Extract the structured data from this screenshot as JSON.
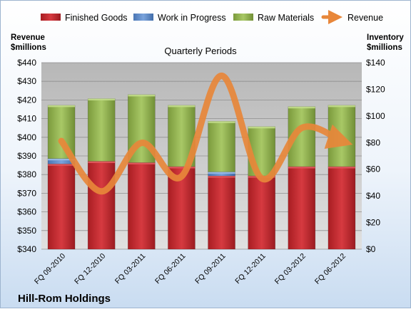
{
  "chart_data": {
    "type": "bar",
    "subtitle": "Quarterly Periods",
    "company": "Hill-Rom Holdings",
    "categories": [
      "FQ 09-2010",
      "FQ 12-2010",
      "FQ 03-2011",
      "FQ 06-2011",
      "FQ 09-2011",
      "FQ 12-2011",
      "FQ 03-2012",
      "FQ 06-2012"
    ],
    "left_axis": {
      "title_line1": "Revenue",
      "title_line2": "$millions",
      "range": [
        340,
        440
      ],
      "ticks": [
        "$440",
        "$430",
        "$420",
        "$410",
        "$400",
        "$390",
        "$380",
        "$370",
        "$360",
        "$350",
        "$340"
      ]
    },
    "right_axis": {
      "title_line1": "Inventory",
      "title_line2": "$millions",
      "range": [
        0,
        140
      ],
      "ticks": [
        "$140",
        "$120",
        "$100",
        "$80",
        "$60",
        "$40",
        "$20",
        "$0"
      ]
    },
    "series": [
      {
        "name": "Finished Goods",
        "axis": "right",
        "color": "#c0282e",
        "values": [
          64,
          66,
          65,
          62,
          55,
          55,
          62,
          62
        ]
      },
      {
        "name": "Work in Progress",
        "axis": "right",
        "color": "#5b87c6",
        "values": [
          4,
          0,
          0,
          0,
          3,
          0,
          0,
          0
        ]
      },
      {
        "name": "Raw Materials",
        "axis": "right",
        "color": "#8fb04a",
        "values": [
          40,
          47,
          51,
          46,
          38,
          37,
          45,
          46
        ]
      },
      {
        "name": "Revenue",
        "axis": "left",
        "type": "line",
        "color": "#e8873a",
        "values": [
          398,
          371,
          397,
          379,
          433,
          378,
          405,
          398
        ]
      }
    ],
    "grid": true,
    "legend_position": "top"
  }
}
